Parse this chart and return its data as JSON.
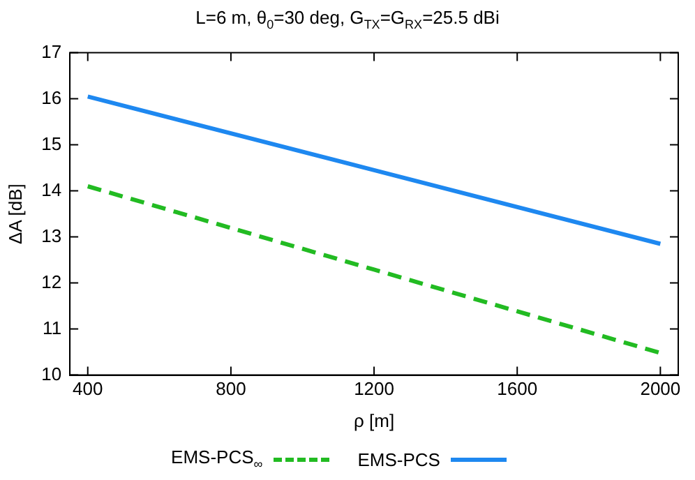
{
  "chart_data": {
    "type": "line",
    "title": "L=6 m, θ$_{0}$=30 deg, G$_{TX}$=G$_{RX}$=25.5 dBi",
    "xlabel": "ρ [m]",
    "ylabel": "ΔA [dB]",
    "x": [
      400,
      1200,
      2000
    ],
    "series": [
      {
        "name": "EMS-PCS$_{∞}$",
        "color": "#22bb22",
        "line_style": "dashed",
        "values": [
          14.1,
          12.29,
          10.48
        ]
      },
      {
        "name": "EMS-PCS",
        "color": "#1e88f0",
        "line_style": "solid",
        "values": [
          16.05,
          14.45,
          12.85
        ]
      }
    ],
    "xlim": [
      350,
      2050
    ],
    "xticks": [
      400,
      800,
      1200,
      1600,
      2000
    ],
    "ylim": [
      10,
      17
    ],
    "yticks": [
      10,
      11,
      12,
      13,
      14,
      15,
      16,
      17
    ],
    "grid": false,
    "legend": "bottom",
    "marker": "none"
  }
}
